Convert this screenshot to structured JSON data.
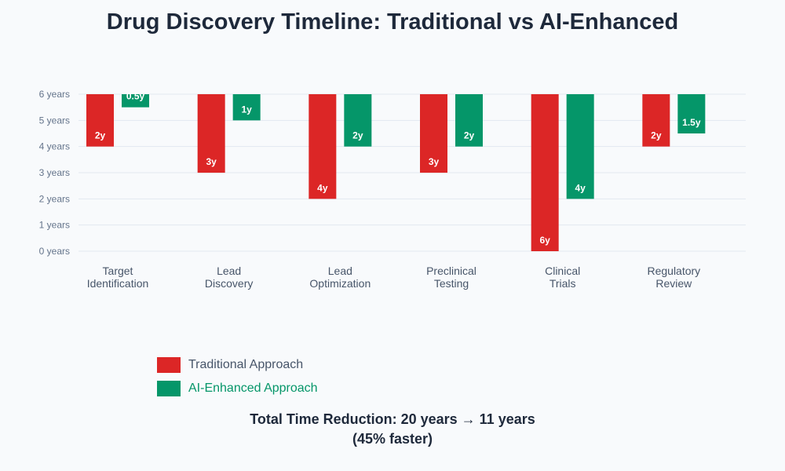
{
  "colors": {
    "traditional": "#dc2626",
    "ai": "#059669",
    "grid": "#e2e8f0",
    "tick_text": "#64748b",
    "category_text": "#475569",
    "legend_traditional_text": "#475569",
    "legend_ai_text": "#059669"
  },
  "chart_data": {
    "type": "bar",
    "title": "Drug Discovery Timeline: Traditional vs AI-Enhanced",
    "categories": [
      [
        "Target",
        "Identification"
      ],
      [
        "Lead",
        "Discovery"
      ],
      [
        "Lead",
        "Optimization"
      ],
      [
        "Preclinical",
        "Testing"
      ],
      [
        "Clinical",
        "Trials"
      ],
      [
        "Regulatory",
        "Review"
      ]
    ],
    "series": [
      {
        "name": "Traditional Approach",
        "values": [
          2,
          3,
          4,
          3,
          6,
          2
        ],
        "labels": [
          "2y",
          "3y",
          "4y",
          "3y",
          "6y",
          "2y"
        ]
      },
      {
        "name": "AI-Enhanced Approach",
        "values": [
          0.5,
          1,
          2,
          2,
          4,
          1.5
        ],
        "labels": [
          "0.5y",
          "1y",
          "2y",
          "2y",
          "4y",
          "1.5y"
        ]
      }
    ],
    "y_ticks": [
      "0 years",
      "1 years",
      "2 years",
      "3 years",
      "4 years",
      "5 years",
      "6 years"
    ],
    "ylim": [
      0,
      6
    ],
    "y_direction": "bars hang down from the 6-year line",
    "grid": true,
    "legend_position": "bottom-left"
  },
  "summary": {
    "line1": "Total Time Reduction: 20 years → 11 years",
    "line2": "(45% faster)"
  }
}
